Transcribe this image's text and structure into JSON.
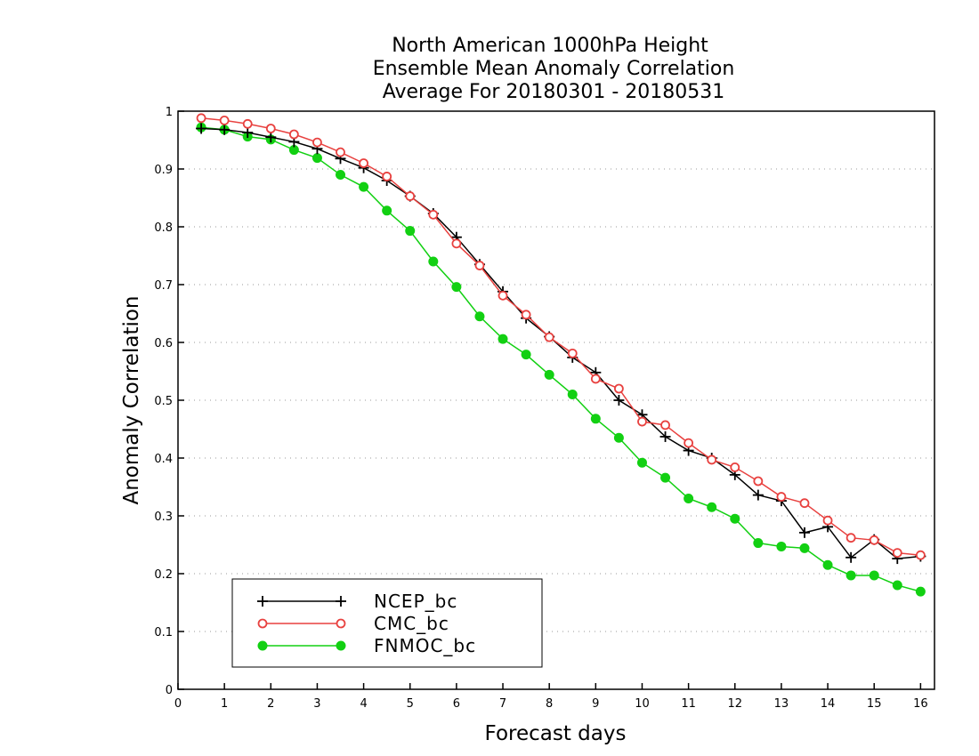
{
  "chart_data": {
    "type": "line",
    "title_lines": [
      "North American 1000hPa Height",
      "Ensemble Mean Anomaly Correlation",
      "Average For 20180301 - 20180531"
    ],
    "xlabel": "Forecast days",
    "ylabel": "Anomaly Correlation",
    "xlim": [
      0,
      16.3
    ],
    "ylim": [
      0,
      1
    ],
    "x_ticks": [
      0,
      1,
      2,
      3,
      4,
      5,
      6,
      7,
      8,
      9,
      10,
      11,
      12,
      13,
      14,
      15,
      16
    ],
    "x_tick_labels": [
      "0",
      "1",
      "2",
      "3",
      "4",
      "5",
      "6",
      "7",
      "8",
      "9",
      "10",
      "11",
      "12",
      "13",
      "14",
      "15",
      "16"
    ],
    "y_ticks": [
      0,
      0.1,
      0.2,
      0.3,
      0.4,
      0.5,
      0.6,
      0.7,
      0.8,
      0.9,
      1
    ],
    "y_tick_labels": [
      "0",
      "0.1",
      "0.2",
      "0.3",
      "0.4",
      "0.5",
      "0.6",
      "0.7",
      "0.8",
      "0.9",
      "1"
    ],
    "grid": "horizontal dotted",
    "legend_position": "bottom-left",
    "x": [
      0.5,
      1,
      1.5,
      2,
      2.5,
      3,
      3.5,
      4,
      4.5,
      5,
      5.5,
      6,
      6.5,
      7,
      7.5,
      8,
      8.5,
      9,
      9.5,
      10,
      10.5,
      11,
      11.5,
      12,
      12.5,
      13,
      13.5,
      14,
      14.5,
      15,
      15.5,
      16
    ],
    "series": [
      {
        "name": "NCEP_bc",
        "color": "#000000",
        "marker": "plus",
        "values": [
          0.97,
          0.968,
          0.963,
          0.955,
          0.947,
          0.935,
          0.918,
          0.902,
          0.88,
          0.853,
          0.823,
          0.782,
          0.735,
          0.688,
          0.642,
          0.61,
          0.574,
          0.548,
          0.5,
          0.475,
          0.437,
          0.413,
          0.4,
          0.371,
          0.336,
          0.326,
          0.271,
          0.281,
          0.228,
          0.259,
          0.226,
          0.23
        ]
      },
      {
        "name": "CMC_bc",
        "color": "#e8413f",
        "marker": "open-circle",
        "values": [
          0.988,
          0.984,
          0.978,
          0.97,
          0.96,
          0.946,
          0.929,
          0.91,
          0.887,
          0.853,
          0.821,
          0.771,
          0.733,
          0.681,
          0.648,
          0.609,
          0.581,
          0.537,
          0.52,
          0.463,
          0.457,
          0.426,
          0.397,
          0.384,
          0.36,
          0.333,
          0.322,
          0.292,
          0.262,
          0.258,
          0.236,
          0.232
        ]
      },
      {
        "name": "FNMOC_bc",
        "color": "#12d012",
        "marker": "filled-circle",
        "values": [
          0.972,
          0.968,
          0.956,
          0.951,
          0.933,
          0.919,
          0.89,
          0.869,
          0.828,
          0.793,
          0.74,
          0.696,
          0.645,
          0.606,
          0.579,
          0.544,
          0.51,
          0.468,
          0.435,
          0.392,
          0.366,
          0.33,
          0.315,
          0.295,
          0.253,
          0.247,
          0.244,
          0.215,
          0.197,
          0.197,
          0.18,
          0.169
        ]
      }
    ]
  }
}
